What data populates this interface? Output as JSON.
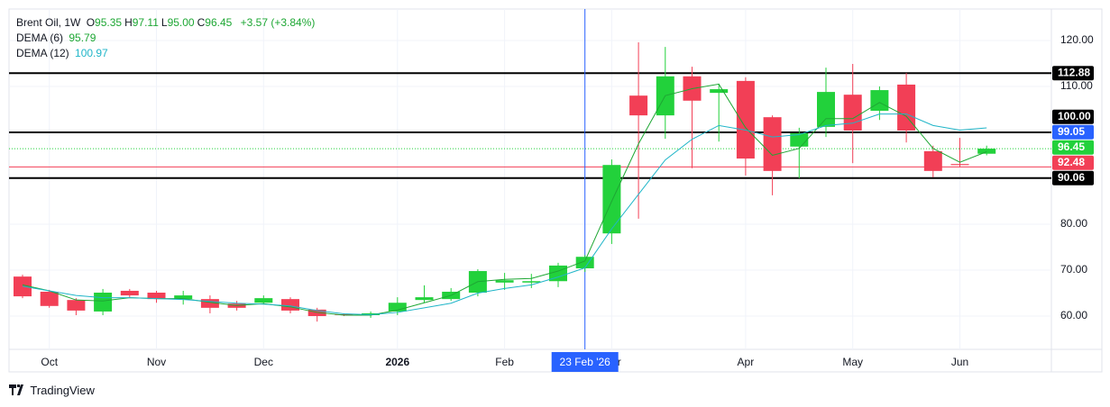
{
  "chart_data": {
    "type": "candlestick",
    "header": {
      "symbol": "Brent Oil, 1W",
      "ohlc": [
        {
          "key": "O",
          "value": "95.35"
        },
        {
          "key": "H",
          "value": "97.11"
        },
        {
          "key": "L",
          "value": "95.00"
        },
        {
          "key": "C",
          "value": "96.45"
        }
      ],
      "change": "+3.57 (+3.84%)"
    },
    "categories": [
      null,
      "Oct",
      null,
      null,
      null,
      "Nov",
      null,
      null,
      null,
      "Dec",
      null,
      null,
      null,
      null,
      "2026",
      null,
      null,
      null,
      "Feb",
      null,
      null,
      null,
      "Mar",
      null,
      null,
      null,
      null,
      "Apr",
      null,
      null,
      null,
      "May",
      null,
      null,
      null,
      "Jun",
      null
    ],
    "candles": {
      "name": "Brent Oil",
      "up_color": "#22d13b",
      "down_color": "#f23f56",
      "open": [
        68.6,
        65.3,
        63.5,
        61.0,
        65.5,
        65.1,
        63.7,
        63.7,
        62.7,
        62.9,
        63.7,
        61.4,
        60.4,
        60.2,
        61.0,
        63.5,
        63.7,
        65.1,
        67.3,
        67.3,
        67.6,
        70.4,
        78.0,
        108.0,
        103.7,
        112.2,
        108.6,
        111.2,
        103.3,
        96.9,
        101.2,
        108.2,
        104.7,
        110.4,
        95.9,
        93.1,
        95.35
      ],
      "high": [
        69.0,
        65.7,
        63.9,
        65.9,
        65.9,
        65.5,
        65.5,
        64.5,
        63.3,
        64.5,
        64.1,
        61.8,
        60.6,
        61.0,
        64.1,
        66.7,
        66.1,
        70.2,
        69.4,
        69.2,
        71.6,
        73.3,
        94.1,
        119.6,
        118.6,
        114.3,
        110.6,
        112.0,
        103.7,
        101.0,
        114.1,
        114.9,
        110.0,
        112.9,
        97.1,
        98.8,
        97.11
      ],
      "low": [
        63.9,
        61.8,
        60.2,
        60.2,
        64.1,
        62.9,
        62.5,
        60.6,
        61.2,
        62.5,
        60.6,
        58.8,
        60.0,
        59.6,
        60.2,
        62.9,
        63.3,
        64.3,
        65.7,
        66.1,
        66.3,
        69.6,
        75.7,
        81.2,
        98.6,
        92.2,
        98.0,
        90.6,
        86.3,
        90.0,
        99.0,
        93.3,
        102.7,
        97.8,
        90.2,
        92.4,
        95.0
      ],
      "close": [
        64.3,
        62.2,
        61.2,
        65.1,
        64.5,
        63.7,
        64.5,
        61.8,
        61.8,
        63.9,
        61.2,
        60.0,
        60.2,
        60.6,
        62.9,
        64.1,
        65.3,
        69.8,
        67.8,
        67.6,
        71.0,
        72.9,
        92.9,
        103.7,
        112.2,
        106.9,
        109.4,
        94.3,
        91.6,
        99.8,
        108.8,
        100.4,
        109.2,
        100.4,
        91.6,
        92.88,
        96.45
      ]
    },
    "series": [
      {
        "name": "DEMA (6)",
        "color": "#1ea734",
        "values": [
          66.8,
          65.5,
          63.5,
          63.3,
          64.0,
          63.8,
          63.8,
          63.0,
          62.3,
          62.7,
          62.0,
          60.8,
          60.2,
          60.2,
          61.3,
          62.9,
          64.5,
          67.5,
          68.0,
          68.2,
          69.8,
          72.0,
          85.0,
          97.5,
          108.0,
          109.5,
          110.5,
          101.0,
          95.0,
          96.5,
          103.0,
          103.0,
          106.5,
          103.5,
          96.5,
          93.5,
          95.79
        ]
      },
      {
        "name": "DEMA (12)",
        "color": "#1fb5c8",
        "values": [
          66.5,
          65.5,
          64.5,
          64.0,
          64.0,
          63.8,
          63.6,
          63.2,
          62.8,
          62.6,
          62.2,
          61.2,
          60.5,
          60.3,
          60.8,
          61.8,
          62.8,
          65.0,
          66.0,
          66.8,
          68.5,
          70.5,
          79.0,
          86.5,
          94.0,
          98.5,
          101.5,
          100.5,
          99.0,
          99.5,
          101.5,
          102.0,
          104.0,
          104.0,
          101.5,
          100.5,
          100.97
        ]
      }
    ],
    "ylim": [
      52.75,
      126.86
    ],
    "yticks": [
      60,
      70,
      80,
      90,
      100,
      110,
      120
    ],
    "yticks_labels": [
      {
        "value": 60,
        "label": "60.00"
      },
      {
        "value": 70,
        "label": "70.00"
      },
      {
        "value": 80,
        "label": "80.00"
      },
      {
        "value": 90,
        "label": "90.00"
      },
      {
        "value": 100,
        "label": "100.00"
      },
      {
        "value": 110,
        "label": "110.00"
      },
      {
        "value": 120,
        "label": "120.00"
      }
    ],
    "grid": true,
    "levels": [
      {
        "value": 112.88,
        "color": "#000000",
        "style": "solid-thick"
      },
      {
        "value": 100,
        "label": "100.00",
        "color": "#000000",
        "style": "solid-thick"
      },
      {
        "value": 90.06,
        "color": "#000000",
        "style": "solid-thick"
      },
      {
        "value": 96.45,
        "color": "#22d13b",
        "style": "dotted"
      },
      {
        "value": 92.48,
        "color": "#f23f56",
        "style": "solid"
      },
      {
        "value": 99.05,
        "color": "#2962ff",
        "style": "none"
      }
    ],
    "crosshair": {
      "index": 21,
      "label": "23 Feb '26",
      "color": "#2962ff"
    },
    "brand": "TradingView"
  }
}
